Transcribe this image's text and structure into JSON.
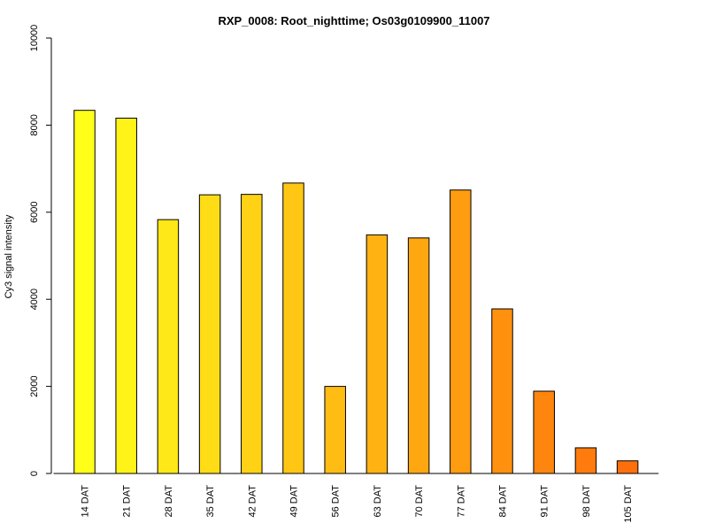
{
  "chart_data": {
    "type": "bar",
    "title": "RXP_0008: Root_nighttime; Os03g0109900_11007",
    "xlabel": "",
    "ylabel": "Cy3 signal intensity",
    "ylim": [
      0,
      10000
    ],
    "yticks": [
      0,
      2000,
      4000,
      6000,
      8000,
      10000
    ],
    "grid": false,
    "legend": "none",
    "categories": [
      "14 DAT",
      "21 DAT",
      "28 DAT",
      "35 DAT",
      "42 DAT",
      "49 DAT",
      "56 DAT",
      "63 DAT",
      "70 DAT",
      "77 DAT",
      "84 DAT",
      "91 DAT",
      "98 DAT",
      "105 DAT"
    ],
    "values": [
      8340,
      8160,
      5830,
      6400,
      6410,
      6670,
      2000,
      5480,
      5410,
      6510,
      3780,
      1890,
      590,
      290
    ],
    "colors": [
      "#FFFF19",
      "#FFF318",
      "#FFE817",
      "#FFDD16",
      "#FFD215",
      "#FFC714",
      "#FFBC13",
      "#FFB212",
      "#FFA711",
      "#FF9C10",
      "#FF910F",
      "#FF860E",
      "#FF7B0D",
      "#FF700C"
    ],
    "bar_outline": "#000000"
  }
}
